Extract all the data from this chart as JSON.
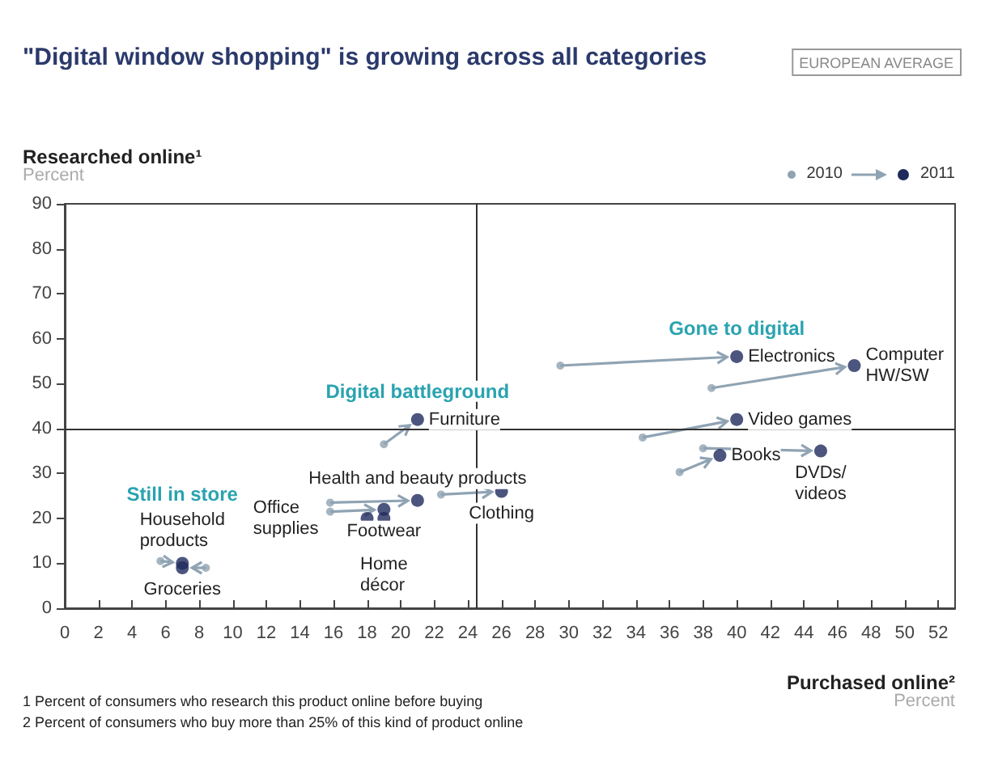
{
  "chart_data": {
    "type": "scatter",
    "title": "\"Digital window shopping\" is growing across all categories",
    "subtitle": "EUROPEAN AVERAGE",
    "xlabel": "Purchased online²\nPercent",
    "ylabel": "Researched online¹\nPercent",
    "series": [
      {
        "name": "2010",
        "color": "#8fa3b3",
        "x": [
          29.5,
          38.5,
          34.4,
          36.6,
          38,
          19,
          15.8,
          22.4,
          15.8,
          null,
          null,
          5.7,
          8.4
        ],
        "values": [
          54,
          49,
          38,
          30.3,
          35.6,
          36.5,
          23.5,
          25.3,
          21.5,
          null,
          null,
          10.5,
          9
        ]
      },
      {
        "name": "2011",
        "color": "#1f2a5c",
        "x": [
          40,
          47,
          40,
          39,
          45,
          21,
          21,
          26,
          19,
          19,
          18,
          7,
          7
        ],
        "values": [
          56,
          54,
          42,
          34,
          35,
          42,
          24,
          26,
          22,
          20,
          20,
          10,
          9
        ]
      }
    ],
    "xlim": [
      0,
      53
    ],
    "xticks": [
      0,
      2,
      4,
      6,
      8,
      10,
      12,
      14,
      16,
      18,
      20,
      22,
      24,
      26,
      28,
      30,
      32,
      34,
      36,
      38,
      40,
      42,
      44,
      46,
      48,
      50,
      52
    ],
    "ylim": [
      0,
      90
    ],
    "yticks": [
      0,
      10,
      20,
      30,
      40,
      50,
      60,
      70,
      80,
      90
    ],
    "ref_lines": [
      {
        "axis": "x",
        "value": 24.5,
        "color": "#333333"
      },
      {
        "axis": "y",
        "value": 40,
        "color": "#333333"
      }
    ],
    "marker": "circle",
    "grid": false,
    "legend": "top right",
    "annotations": [
      {
        "text": "Electronics",
        "x": 40,
        "y": 56
      },
      {
        "text": "Computer\nHW/SW",
        "x": 47,
        "y": 54
      },
      {
        "text": "Video games",
        "x": 40,
        "y": 42
      },
      {
        "text": "Books",
        "x": 39,
        "y": 34
      },
      {
        "text": "DVDs/\nvideos",
        "x": 45,
        "y": 35
      },
      {
        "text": "Furniture",
        "x": 21,
        "y": 42
      },
      {
        "text": "Health and beauty products",
        "x": 21,
        "y": 24
      },
      {
        "text": "Footwear",
        "x": 19,
        "y": 22
      },
      {
        "text": "Clothing",
        "x": 26,
        "y": 26
      },
      {
        "text": "Home\ndécor",
        "x": 19,
        "y": 20
      },
      {
        "text": "Office\nsupplies",
        "x": 18,
        "y": 20
      },
      {
        "text": "Household\nproducts",
        "x": 7,
        "y": 10
      },
      {
        "text": "Groceries",
        "x": 7,
        "y": 9
      },
      {
        "text": "Still in store",
        "x": 7,
        "y": 10
      },
      {
        "text": "Digital battleground",
        "x": 21,
        "y": 42
      },
      {
        "text": "Gone to digital",
        "x": 40,
        "y": 56
      },
      "1 Percent of consumers who research this product online before buying",
      "2 Percent of consumers who buy more than 25% of this kind of product online"
    ]
  }
}
